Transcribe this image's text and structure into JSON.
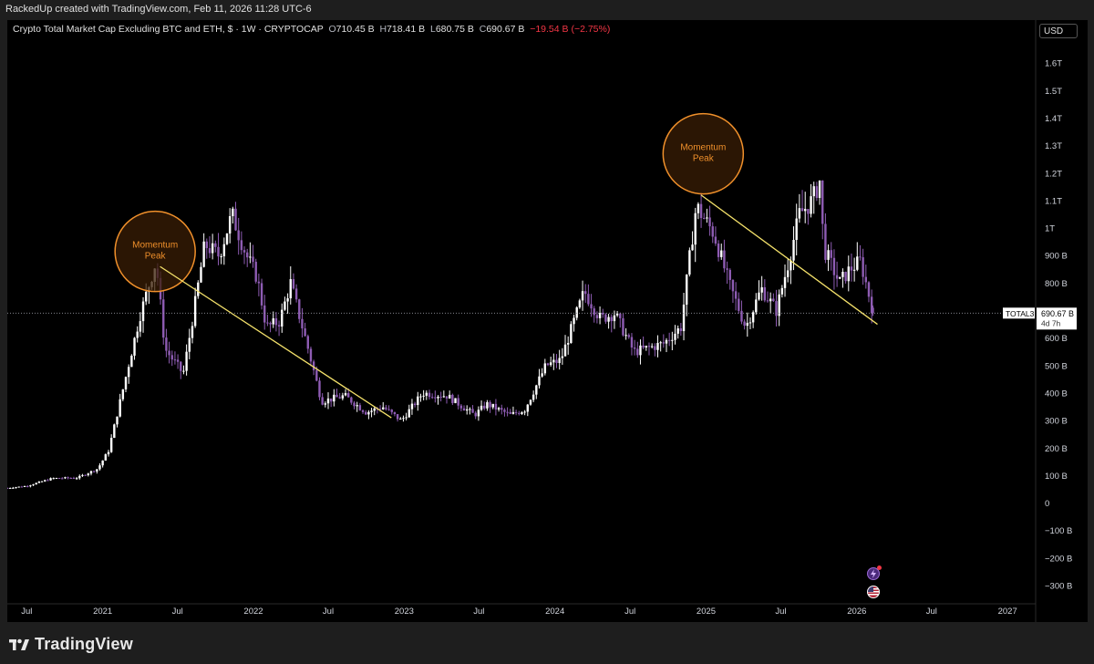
{
  "header": {
    "attribution": "RackedUp created with TradingView.com, Feb 11, 2026 11:28 UTC-6"
  },
  "legend": {
    "title": "Crypto Total Market Cap Excluding BTC and ETH, $ · 1W · CRYPTOCAP",
    "o_label": "O",
    "o_value": "710.45 B",
    "h_label": "H",
    "h_value": "718.41 B",
    "l_label": "L",
    "l_value": "680.75 B",
    "c_label": "C",
    "c_value": "690.67 B",
    "change": "−19.54 B (−2.75%)"
  },
  "currency_button": "USD",
  "footer": {
    "brand": "TradingView"
  },
  "colors": {
    "up": "#ffffff",
    "down": "#8e5cb3",
    "trend": "#f5e26b",
    "circle": "#f0902b",
    "circle_fill": "#3a1e05",
    "bg": "#000000"
  },
  "chart_data": {
    "type": "candlestick",
    "symbol": "TOTAL3",
    "timeframe": "1W",
    "last_price_label": "690.67 B",
    "countdown": "4d 7h",
    "y_axis": {
      "range": [
        -300,
        1700
      ],
      "ticks": [
        1600,
        1500,
        1400,
        1300,
        1200,
        1100,
        1000,
        900,
        800,
        700,
        600,
        500,
        400,
        300,
        200,
        100,
        0,
        -100,
        -200,
        -300
      ],
      "tick_labels": [
        "1.6T",
        "1.5T",
        "1.4T",
        "1.3T",
        "1.2T",
        "1.1T",
        "1T",
        "900 B",
        "800 B",
        "700 B",
        "600 B",
        "500 B",
        "400 B",
        "300 B",
        "200 B",
        "100 B",
        "0",
        "−100 B",
        "−200 B",
        "−300 B"
      ]
    },
    "x_axis": {
      "range": [
        "2020-05-15",
        "2027-03-10"
      ],
      "ticks": [
        "2020-07-01",
        "2021-01-01",
        "2021-07-01",
        "2022-01-01",
        "2022-07-01",
        "2023-01-01",
        "2023-07-01",
        "2024-01-01",
        "2024-07-01",
        "2025-01-01",
        "2025-07-01",
        "2026-01-01",
        "2026-07-01",
        "2027-01-01"
      ],
      "tick_labels": [
        "Jul",
        "2021",
        "Jul",
        "2022",
        "Jul",
        "2023",
        "Jul",
        "2024",
        "Jul",
        "2025",
        "Jul",
        "2026",
        "Jul",
        "2027"
      ]
    },
    "price_path": [
      [
        "2020-05-15",
        55
      ],
      [
        "2020-07-01",
        62
      ],
      [
        "2020-09-01",
        90
      ],
      [
        "2020-11-01",
        92
      ],
      [
        "2020-12-20",
        125
      ],
      [
        "2021-01-15",
        190
      ],
      [
        "2021-02-20",
        420
      ],
      [
        "2021-04-01",
        680
      ],
      [
        "2021-05-10",
        880
      ],
      [
        "2021-06-01",
        560
      ],
      [
        "2021-07-15",
        470
      ],
      [
        "2021-08-10",
        700
      ],
      [
        "2021-09-05",
        940
      ],
      [
        "2021-10-10",
        900
      ],
      [
        "2021-11-10",
        1050
      ],
      [
        "2021-12-15",
        900
      ],
      [
        "2022-01-10",
        820
      ],
      [
        "2022-02-01",
        640
      ],
      [
        "2022-03-05",
        660
      ],
      [
        "2022-04-01",
        800
      ],
      [
        "2022-05-10",
        580
      ],
      [
        "2022-06-15",
        370
      ],
      [
        "2022-08-10",
        390
      ],
      [
        "2022-10-01",
        330
      ],
      [
        "2022-11-10",
        350
      ],
      [
        "2022-12-25",
        300
      ],
      [
        "2023-02-15",
        400
      ],
      [
        "2023-04-15",
        390
      ],
      [
        "2023-06-20",
        320
      ],
      [
        "2023-07-20",
        360
      ],
      [
        "2023-09-15",
        320
      ],
      [
        "2023-10-20",
        340
      ],
      [
        "2023-12-10",
        500
      ],
      [
        "2024-01-15",
        520
      ],
      [
        "2024-03-12",
        770
      ],
      [
        "2024-04-20",
        670
      ],
      [
        "2024-05-25",
        690
      ],
      [
        "2024-07-10",
        550
      ],
      [
        "2024-08-05",
        560
      ],
      [
        "2024-09-20",
        580
      ],
      [
        "2024-11-01",
        640
      ],
      [
        "2024-12-08",
        1080
      ],
      [
        "2025-01-20",
        980
      ],
      [
        "2025-02-25",
        800
      ],
      [
        "2025-04-07",
        640
      ],
      [
        "2025-05-15",
        780
      ],
      [
        "2025-06-20",
        700
      ],
      [
        "2025-07-20",
        880
      ],
      [
        "2025-08-15",
        1050
      ],
      [
        "2025-09-15",
        1100
      ],
      [
        "2025-10-05",
        1180
      ],
      [
        "2025-10-12",
        930
      ],
      [
        "2025-11-20",
        800
      ],
      [
        "2025-12-15",
        850
      ],
      [
        "2026-01-10",
        880
      ],
      [
        "2026-02-10",
        690
      ]
    ],
    "last_candle": {
      "date": "2026-02-09",
      "open": 710.45,
      "high": 718.41,
      "low": 680.75,
      "close": 690.67
    },
    "annotations": [
      {
        "type": "circle",
        "label_line1": "Momentum",
        "label_line2": "Peak",
        "date": "2021-05-08",
        "value": 915
      },
      {
        "type": "circle",
        "label_line1": "Momentum",
        "label_line2": "Peak",
        "date": "2024-12-25",
        "value": 1270
      },
      {
        "type": "trendline",
        "from": [
          "2021-05-20",
          860
        ],
        "to": [
          "2022-12-01",
          310
        ]
      },
      {
        "type": "trendline",
        "from": [
          "2024-12-20",
          1120
        ],
        "to": [
          "2026-02-20",
          650
        ]
      }
    ]
  }
}
